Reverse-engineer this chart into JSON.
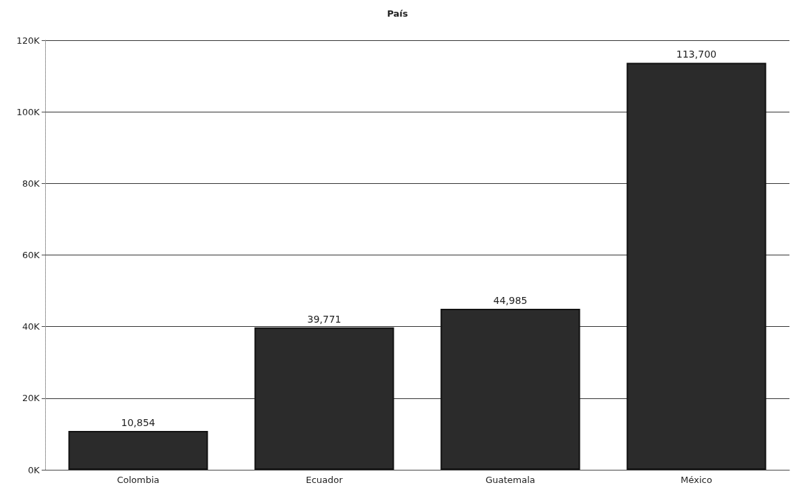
{
  "chart_data": {
    "type": "bar",
    "title": "País",
    "categories": [
      "Colombia",
      "Ecuador",
      "Guatemala",
      "México"
    ],
    "values": [
      10854,
      39771,
      44985,
      113700
    ],
    "color": "#2b2b2b",
    "ylim": [
      0,
      120000
    ],
    "yticks": [
      {
        "value": 0,
        "label": "0K"
      },
      {
        "value": 20000,
        "label": "20K"
      },
      {
        "value": 40000,
        "label": "40K"
      },
      {
        "value": 60000,
        "label": "60K"
      },
      {
        "value": 80000,
        "label": "80K"
      },
      {
        "value": 100000,
        "label": "100K"
      },
      {
        "value": 120000,
        "label": "120K"
      }
    ],
    "grid": "y",
    "value_labels": [
      "10,854",
      "39,771",
      "44,985",
      "113,700"
    ]
  }
}
